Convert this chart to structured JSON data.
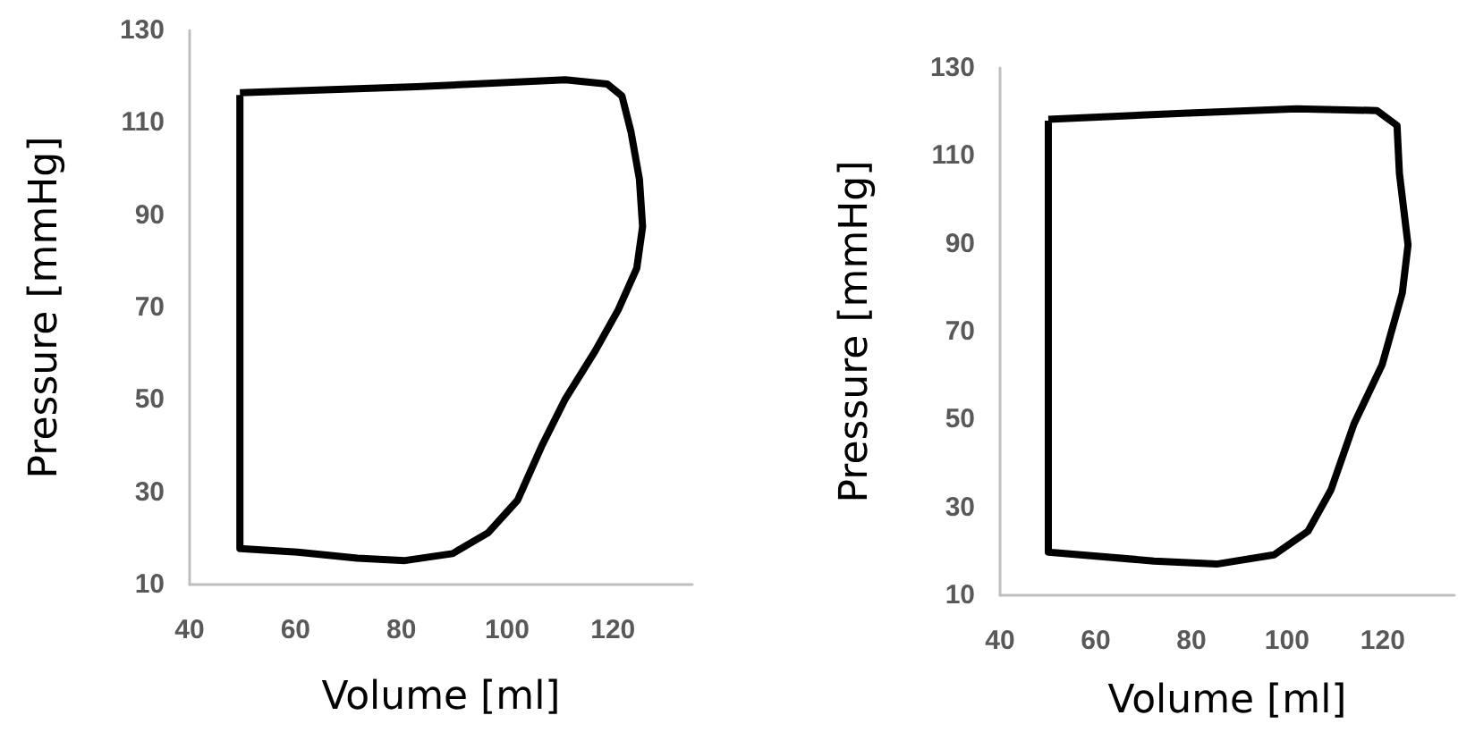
{
  "chart_data": [
    {
      "type": "line",
      "xlabel": "Volume [ml]",
      "ylabel": "Pressure [mmHg]",
      "xlim": [
        40,
        135
      ],
      "ylim": [
        10,
        130
      ],
      "xticks": [
        40,
        60,
        80,
        100,
        120
      ],
      "yticks": [
        10,
        30,
        50,
        70,
        90,
        110,
        130
      ],
      "grid": false,
      "marker": "none",
      "line_style": "solid",
      "series": [
        {
          "color": "#000000",
          "x": [
            49.5,
            82.9,
            111,
            118.9,
            121.7,
            123.4,
            125,
            125.6,
            124.5,
            121,
            116.6,
            111,
            106.5,
            102,
            96.4,
            89.7,
            80.7,
            71.7,
            60.4,
            49.5,
            49.5
          ],
          "values": [
            116.5,
            117.8,
            119.3,
            118.4,
            115.8,
            108.1,
            97.8,
            87.5,
            78.5,
            69.5,
            60.5,
            50.2,
            39.9,
            28.3,
            21.2,
            16.7,
            15.2,
            15.7,
            17,
            17.8,
            116
          ]
        }
      ]
    },
    {
      "type": "line",
      "xlabel": "Volume [ml]",
      "ylabel": "Pressure [mmHg]",
      "xlim": [
        40,
        135
      ],
      "ylim": [
        10,
        130
      ],
      "xticks": [
        40,
        60,
        80,
        100,
        120
      ],
      "yticks": [
        10,
        30,
        50,
        70,
        90,
        110,
        130
      ],
      "grid": false,
      "marker": "none",
      "line_style": "solid",
      "series": [
        {
          "color": "#000000",
          "x": [
            50.1,
            78.2,
            102,
            118.8,
            123,
            123.5,
            125.3,
            124.1,
            119.9,
            114,
            109.2,
            104.4,
            97.3,
            85.3,
            72.2,
            50.1,
            50.1
          ],
          "values": [
            118.3,
            119.7,
            120.7,
            120.3,
            116.9,
            106,
            89.7,
            78.8,
            62.5,
            49,
            34,
            24.6,
            19.2,
            17.1,
            17.8,
            19.8,
            118
          ]
        }
      ]
    }
  ]
}
